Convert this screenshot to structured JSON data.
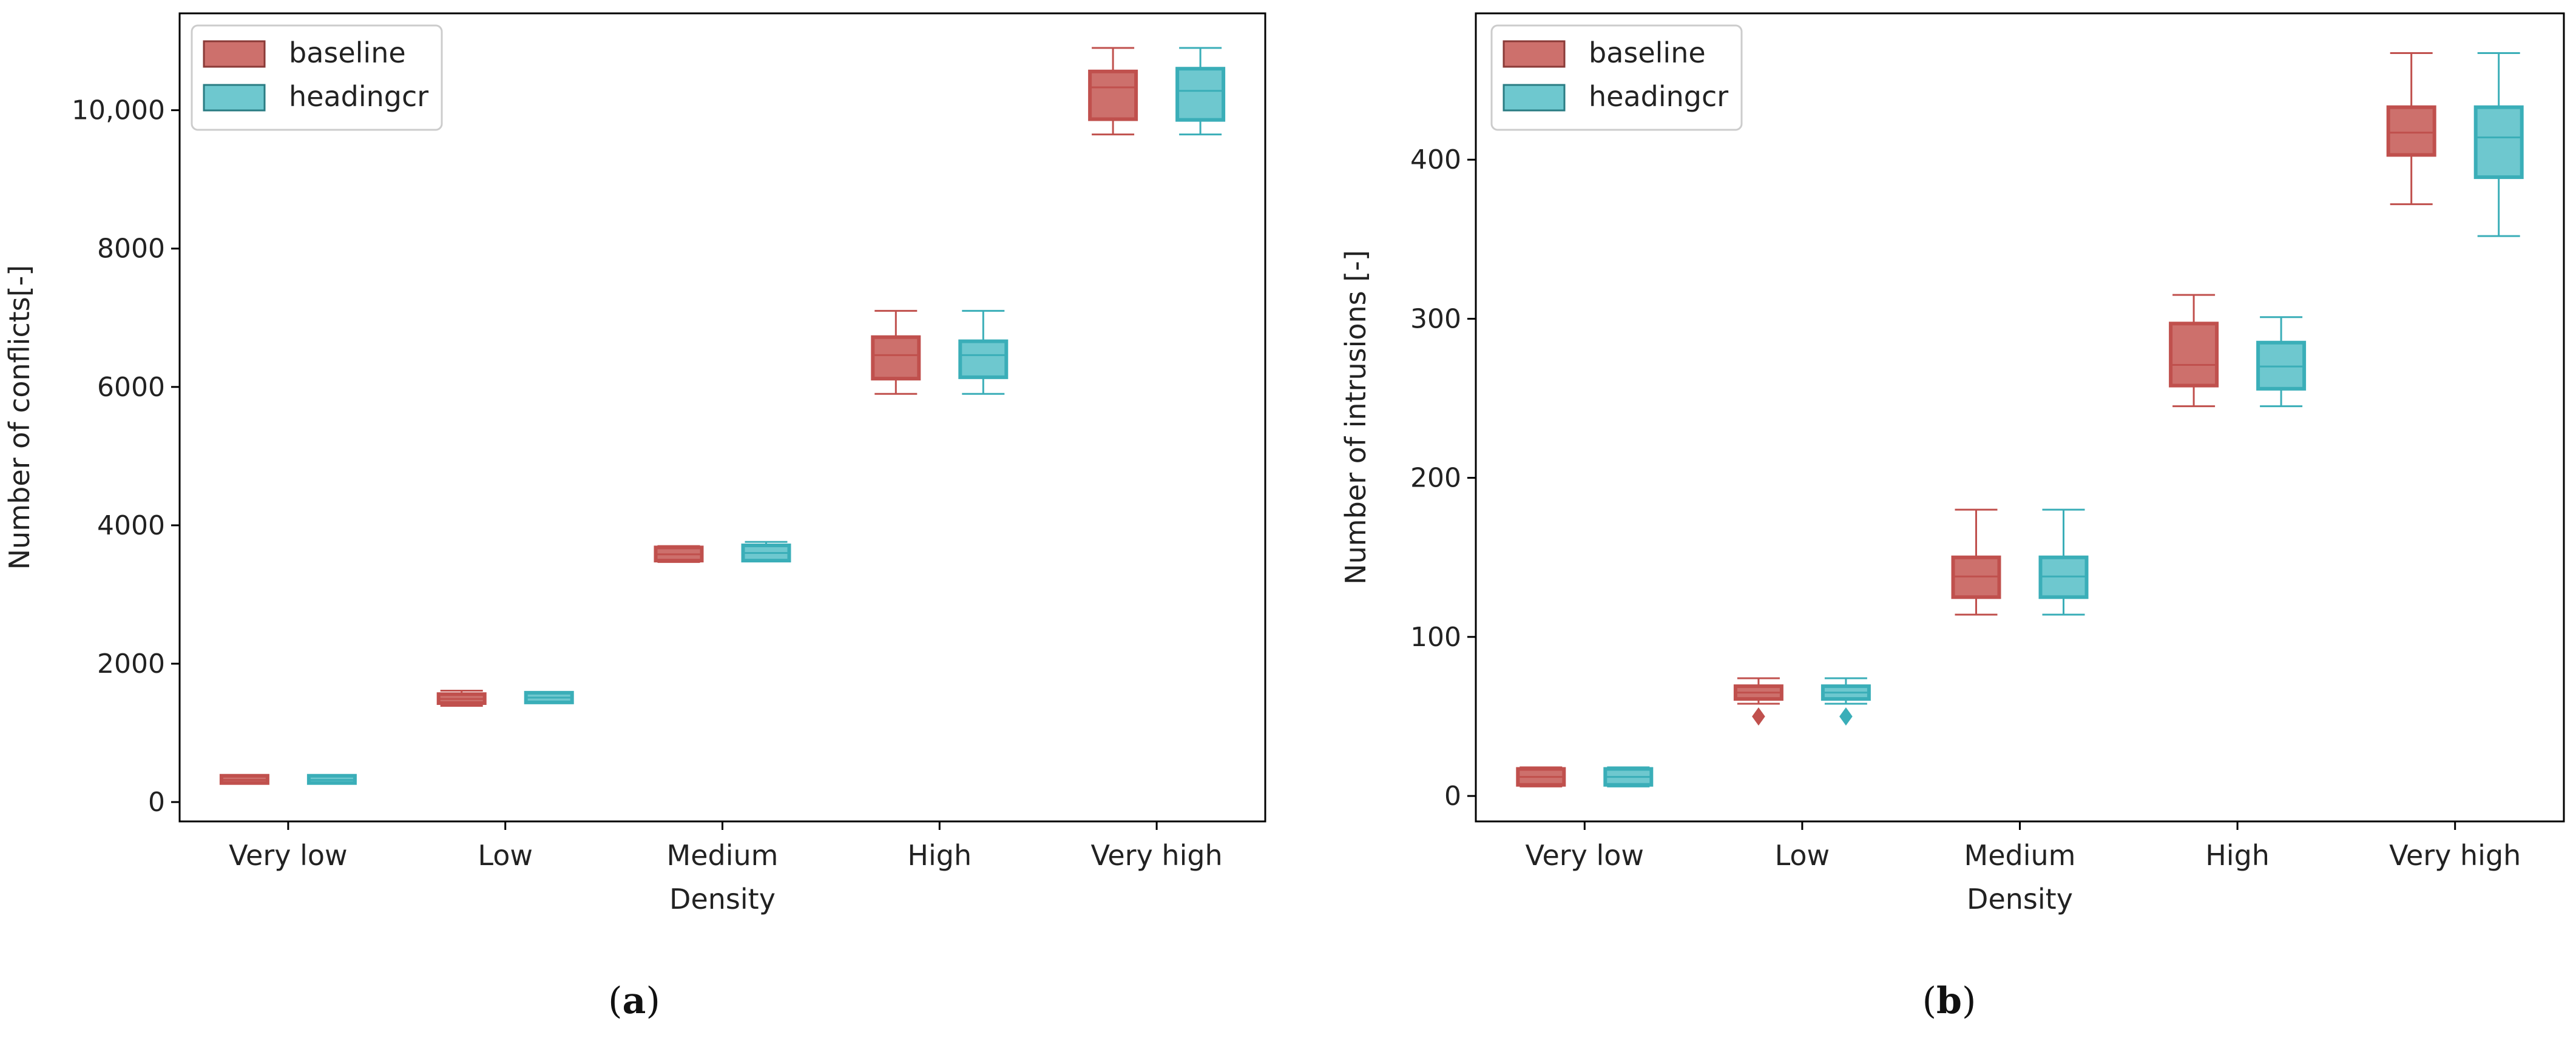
{
  "chart_data": [
    {
      "type": "box",
      "panel_label": "a",
      "xlabel": "Density",
      "ylabel": "Number of conflicts[-]",
      "categories": [
        "Very low",
        "Low",
        "Medium",
        "High",
        "Very high"
      ],
      "ylim": [
        -280,
        11400
      ],
      "yticks": [
        0,
        2000,
        4000,
        6000,
        8000,
        10000
      ],
      "ytick_labels": [
        "0",
        "2000",
        "4000",
        "6000",
        "8000",
        "10,000"
      ],
      "legend": [
        "baseline",
        "headingcr"
      ],
      "series": [
        {
          "name": "baseline",
          "color": "#c0504d",
          "fill": "#cd706c",
          "boxes": [
            {
              "low": 270,
              "q1": 275,
              "median": 320,
              "q3": 380,
              "high": 385,
              "outliers": []
            },
            {
              "low": 1390,
              "q1": 1430,
              "median": 1490,
              "q3": 1560,
              "high": 1610,
              "outliers": []
            },
            {
              "low": 3470,
              "q1": 3490,
              "median": 3580,
              "q3": 3680,
              "high": 3700,
              "outliers": []
            },
            {
              "low": 5900,
              "q1": 6120,
              "median": 6460,
              "q3": 6720,
              "high": 7100,
              "outliers": []
            },
            {
              "low": 9650,
              "q1": 9870,
              "median": 10330,
              "q3": 10560,
              "high": 10900,
              "outliers": []
            }
          ]
        },
        {
          "name": "headingcr",
          "color": "#3aaeb8",
          "fill": "#6ec8cf",
          "boxes": [
            {
              "low": 270,
              "q1": 275,
              "median": 320,
              "q3": 380,
              "high": 385,
              "outliers": []
            },
            {
              "low": 1430,
              "q1": 1440,
              "median": 1510,
              "q3": 1580,
              "high": 1590,
              "outliers": []
            },
            {
              "low": 3480,
              "q1": 3490,
              "median": 3600,
              "q3": 3710,
              "high": 3760,
              "outliers": []
            },
            {
              "low": 5900,
              "q1": 6140,
              "median": 6460,
              "q3": 6660,
              "high": 7100,
              "outliers": []
            },
            {
              "low": 9650,
              "q1": 9860,
              "median": 10280,
              "q3": 10600,
              "high": 10900,
              "outliers": []
            }
          ]
        }
      ]
    },
    {
      "type": "box",
      "panel_label": "b",
      "xlabel": "Density",
      "ylabel": "Number of intrusions [-]",
      "categories": [
        "Very low",
        "Low",
        "Medium",
        "High",
        "Very high"
      ],
      "ylim": [
        -16,
        492
      ],
      "yticks": [
        0,
        100,
        200,
        300,
        400
      ],
      "ytick_labels": [
        "0",
        "100",
        "200",
        "300",
        "400"
      ],
      "legend": [
        "baseline",
        "headingcr"
      ],
      "series": [
        {
          "name": "baseline",
          "color": "#c0504d",
          "fill": "#cd706c",
          "boxes": [
            {
              "low": 6,
              "q1": 7,
              "median": 12,
              "q3": 17,
              "high": 18,
              "outliers": []
            },
            {
              "low": 58,
              "q1": 61,
              "median": 65,
              "q3": 69,
              "high": 74,
              "outliers": [
                50
              ]
            },
            {
              "low": 114,
              "q1": 125,
              "median": 138,
              "q3": 150,
              "high": 180,
              "outliers": []
            },
            {
              "low": 245,
              "q1": 258,
              "median": 271,
              "q3": 297,
              "high": 315,
              "outliers": []
            },
            {
              "low": 372,
              "q1": 403,
              "median": 417,
              "q3": 433,
              "high": 467,
              "outliers": []
            }
          ]
        },
        {
          "name": "headingcr",
          "color": "#3aaeb8",
          "fill": "#6ec8cf",
          "boxes": [
            {
              "low": 6,
              "q1": 7,
              "median": 12,
              "q3": 17,
              "high": 18,
              "outliers": []
            },
            {
              "low": 58,
              "q1": 61,
              "median": 65,
              "q3": 69,
              "high": 74,
              "outliers": [
                50
              ]
            },
            {
              "low": 114,
              "q1": 125,
              "median": 138,
              "q3": 150,
              "high": 180,
              "outliers": []
            },
            {
              "low": 245,
              "q1": 256,
              "median": 270,
              "q3": 285,
              "high": 301,
              "outliers": []
            },
            {
              "low": 352,
              "q1": 389,
              "median": 414,
              "q3": 433,
              "high": 467,
              "outliers": []
            }
          ]
        }
      ]
    }
  ]
}
